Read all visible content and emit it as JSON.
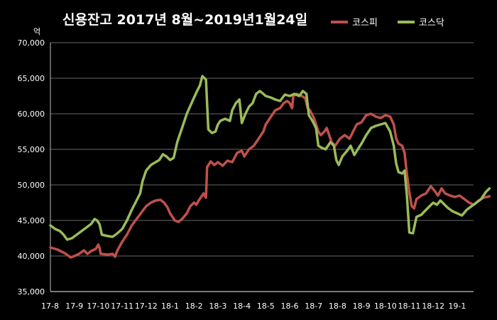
{
  "chart_data": {
    "type": "line",
    "title": "신용잔고 2017년 8월~2019년1월24일",
    "ylabel": "억",
    "ylim": [
      35000,
      70000
    ],
    "yticks": [
      "35,000",
      "40,000",
      "45,000",
      "50,000",
      "55,000",
      "60,000",
      "65,000",
      "70,000"
    ],
    "xticks": [
      "17-8",
      "17-9",
      "17-10",
      "17-11",
      "17-12",
      "18-1",
      "18-2",
      "18-3",
      "18-4",
      "18-5",
      "18-6",
      "18-7",
      "18-8",
      "18-9",
      "18-10",
      "18-11",
      "18-12",
      "19-1"
    ],
    "xmax": 18.35,
    "grid": true,
    "legend": "top-right",
    "series": [
      {
        "name": "코스피",
        "color": "#c0504d",
        "points": [
          [
            0,
            41200
          ],
          [
            0.3,
            40900
          ],
          [
            0.6,
            40400
          ],
          [
            0.85,
            39800
          ],
          [
            1.0,
            40000
          ],
          [
            1.2,
            40300
          ],
          [
            1.4,
            40800
          ],
          [
            1.55,
            40300
          ],
          [
            1.7,
            40700
          ],
          [
            1.9,
            41000
          ],
          [
            2.0,
            41600
          ],
          [
            2.05,
            41200
          ],
          [
            2.1,
            40300
          ],
          [
            2.4,
            40200
          ],
          [
            2.6,
            40300
          ],
          [
            2.7,
            39900
          ],
          [
            2.8,
            40800
          ],
          [
            3.0,
            42000
          ],
          [
            3.2,
            43000
          ],
          [
            3.4,
            44300
          ],
          [
            3.6,
            45200
          ],
          [
            3.8,
            46100
          ],
          [
            4.0,
            47000
          ],
          [
            4.2,
            47500
          ],
          [
            4.4,
            47800
          ],
          [
            4.6,
            47900
          ],
          [
            4.75,
            47500
          ],
          [
            4.9,
            46800
          ],
          [
            5.0,
            46000
          ],
          [
            5.1,
            45500
          ],
          [
            5.2,
            45000
          ],
          [
            5.35,
            44800
          ],
          [
            5.5,
            45200
          ],
          [
            5.7,
            46000
          ],
          [
            5.85,
            47000
          ],
          [
            6.0,
            47500
          ],
          [
            6.1,
            47200
          ],
          [
            6.2,
            47800
          ],
          [
            6.3,
            48300
          ],
          [
            6.4,
            48800
          ],
          [
            6.5,
            48200
          ],
          [
            6.55,
            52500
          ],
          [
            6.7,
            53300
          ],
          [
            6.85,
            52800
          ],
          [
            7.0,
            53200
          ],
          [
            7.2,
            52700
          ],
          [
            7.4,
            53400
          ],
          [
            7.6,
            53200
          ],
          [
            7.8,
            54500
          ],
          [
            8.0,
            54800
          ],
          [
            8.1,
            54000
          ],
          [
            8.3,
            55000
          ],
          [
            8.5,
            55500
          ],
          [
            8.7,
            56500
          ],
          [
            8.9,
            57500
          ],
          [
            9.0,
            58500
          ],
          [
            9.2,
            59500
          ],
          [
            9.4,
            60500
          ],
          [
            9.6,
            60800
          ],
          [
            9.75,
            61500
          ],
          [
            9.9,
            61800
          ],
          [
            10.0,
            61500
          ],
          [
            10.1,
            60800
          ],
          [
            10.15,
            62500
          ],
          [
            10.3,
            62800
          ],
          [
            10.5,
            62500
          ],
          [
            10.65,
            62200
          ],
          [
            10.75,
            60800
          ],
          [
            10.85,
            60500
          ],
          [
            11.0,
            59500
          ],
          [
            11.1,
            58500
          ],
          [
            11.2,
            57500
          ],
          [
            11.3,
            57000
          ],
          [
            11.45,
            57500
          ],
          [
            11.55,
            58000
          ],
          [
            11.65,
            57000
          ],
          [
            11.75,
            56000
          ],
          [
            11.9,
            55500
          ],
          [
            12.1,
            56500
          ],
          [
            12.3,
            57000
          ],
          [
            12.5,
            56500
          ],
          [
            12.65,
            57500
          ],
          [
            12.8,
            58500
          ],
          [
            13.0,
            58800
          ],
          [
            13.2,
            59800
          ],
          [
            13.4,
            60000
          ],
          [
            13.6,
            59600
          ],
          [
            13.8,
            59400
          ],
          [
            14.0,
            59800
          ],
          [
            14.2,
            59600
          ],
          [
            14.35,
            58500
          ],
          [
            14.45,
            56500
          ],
          [
            14.55,
            55800
          ],
          [
            14.7,
            55500
          ],
          [
            14.8,
            54500
          ],
          [
            14.9,
            51500
          ],
          [
            15.0,
            49000
          ],
          [
            15.1,
            47000
          ],
          [
            15.2,
            46700
          ],
          [
            15.3,
            48000
          ],
          [
            15.5,
            48500
          ],
          [
            15.7,
            48800
          ],
          [
            15.9,
            49800
          ],
          [
            16.05,
            49200
          ],
          [
            16.2,
            48500
          ],
          [
            16.35,
            49500
          ],
          [
            16.5,
            48800
          ],
          [
            16.7,
            48500
          ],
          [
            16.9,
            48300
          ],
          [
            17.1,
            48500
          ],
          [
            17.3,
            48000
          ],
          [
            17.5,
            47500
          ],
          [
            17.7,
            47200
          ],
          [
            17.9,
            47800
          ],
          [
            18.1,
            48200
          ],
          [
            18.35,
            48400
          ]
        ]
      },
      {
        "name": "코스닥",
        "color": "#9bbb59",
        "points": [
          [
            0,
            44300
          ],
          [
            0.2,
            43800
          ],
          [
            0.4,
            43500
          ],
          [
            0.55,
            43000
          ],
          [
            0.7,
            42300
          ],
          [
            0.9,
            42500
          ],
          [
            1.1,
            43000
          ],
          [
            1.3,
            43500
          ],
          [
            1.5,
            44000
          ],
          [
            1.7,
            44500
          ],
          [
            1.85,
            45200
          ],
          [
            1.95,
            45000
          ],
          [
            2.05,
            44500
          ],
          [
            2.15,
            43000
          ],
          [
            2.4,
            42800
          ],
          [
            2.6,
            42700
          ],
          [
            2.8,
            43200
          ],
          [
            3.0,
            43800
          ],
          [
            3.2,
            45000
          ],
          [
            3.4,
            46500
          ],
          [
            3.6,
            47800
          ],
          [
            3.75,
            48800
          ],
          [
            3.85,
            50500
          ],
          [
            4.0,
            52000
          ],
          [
            4.2,
            52800
          ],
          [
            4.4,
            53200
          ],
          [
            4.55,
            53500
          ],
          [
            4.7,
            54300
          ],
          [
            4.85,
            54000
          ],
          [
            5.0,
            53500
          ],
          [
            5.15,
            53800
          ],
          [
            5.3,
            56000
          ],
          [
            5.5,
            58000
          ],
          [
            5.7,
            60000
          ],
          [
            5.9,
            61500
          ],
          [
            6.1,
            63000
          ],
          [
            6.25,
            64000
          ],
          [
            6.35,
            65300
          ],
          [
            6.5,
            64800
          ],
          [
            6.6,
            57800
          ],
          [
            6.75,
            57300
          ],
          [
            6.9,
            57500
          ],
          [
            7.0,
            58500
          ],
          [
            7.1,
            59000
          ],
          [
            7.3,
            59300
          ],
          [
            7.5,
            59000
          ],
          [
            7.6,
            60500
          ],
          [
            7.75,
            61500
          ],
          [
            7.9,
            62000
          ],
          [
            8.0,
            58700
          ],
          [
            8.15,
            60000
          ],
          [
            8.3,
            61000
          ],
          [
            8.45,
            61500
          ],
          [
            8.6,
            62800
          ],
          [
            8.75,
            63200
          ],
          [
            8.9,
            62800
          ],
          [
            9.0,
            62500
          ],
          [
            9.2,
            62300
          ],
          [
            9.4,
            62000
          ],
          [
            9.6,
            61800
          ],
          [
            9.8,
            62700
          ],
          [
            10.0,
            62500
          ],
          [
            10.2,
            62800
          ],
          [
            10.4,
            62500
          ],
          [
            10.55,
            63200
          ],
          [
            10.7,
            62800
          ],
          [
            10.8,
            59800
          ],
          [
            10.95,
            59000
          ],
          [
            11.1,
            58000
          ],
          [
            11.2,
            55500
          ],
          [
            11.35,
            55200
          ],
          [
            11.5,
            55000
          ],
          [
            11.7,
            56000
          ],
          [
            11.85,
            55500
          ],
          [
            11.95,
            53500
          ],
          [
            12.05,
            52800
          ],
          [
            12.2,
            54000
          ],
          [
            12.4,
            54800
          ],
          [
            12.55,
            55500
          ],
          [
            12.7,
            54200
          ],
          [
            12.85,
            55000
          ],
          [
            13.0,
            55800
          ],
          [
            13.2,
            57000
          ],
          [
            13.4,
            58000
          ],
          [
            13.6,
            58300
          ],
          [
            13.8,
            58500
          ],
          [
            14.0,
            58700
          ],
          [
            14.2,
            57500
          ],
          [
            14.35,
            55500
          ],
          [
            14.45,
            53000
          ],
          [
            14.55,
            51800
          ],
          [
            14.7,
            51600
          ],
          [
            14.8,
            52000
          ],
          [
            14.9,
            48500
          ],
          [
            15.0,
            43300
          ],
          [
            15.15,
            43200
          ],
          [
            15.3,
            45500
          ],
          [
            15.5,
            45800
          ],
          [
            15.7,
            46500
          ],
          [
            15.85,
            47000
          ],
          [
            16.0,
            47500
          ],
          [
            16.15,
            47200
          ],
          [
            16.3,
            47800
          ],
          [
            16.45,
            47300
          ],
          [
            16.6,
            46800
          ],
          [
            16.8,
            46300
          ],
          [
            17.0,
            46000
          ],
          [
            17.2,
            45700
          ],
          [
            17.4,
            46500
          ],
          [
            17.6,
            47000
          ],
          [
            17.8,
            47500
          ],
          [
            18.0,
            48000
          ],
          [
            18.2,
            49000
          ],
          [
            18.35,
            49500
          ]
        ]
      }
    ]
  }
}
